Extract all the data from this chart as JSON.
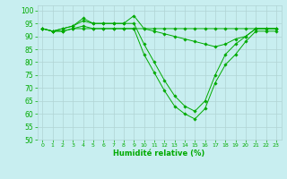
{
  "background_color": "#c8eef0",
  "grid_color": "#b0d4d4",
  "line_color": "#00aa00",
  "marker_color": "#00aa00",
  "xlabel": "Humidité relative (%)",
  "xlabel_color": "#00aa00",
  "tick_color": "#00aa00",
  "ylim": [
    50,
    102
  ],
  "xlim": [
    -0.5,
    23.5
  ],
  "yticks": [
    50,
    55,
    60,
    65,
    70,
    75,
    80,
    85,
    90,
    95,
    100
  ],
  "xticks": [
    0,
    1,
    2,
    3,
    4,
    5,
    6,
    7,
    8,
    9,
    10,
    11,
    12,
    13,
    14,
    15,
    16,
    17,
    18,
    19,
    20,
    21,
    22,
    23
  ],
  "series": [
    [
      93,
      92,
      92,
      93,
      93,
      93,
      93,
      93,
      93,
      93,
      93,
      93,
      93,
      93,
      93,
      93,
      93,
      93,
      93,
      93,
      93,
      93,
      93,
      93
    ],
    [
      93,
      92,
      93,
      94,
      97,
      95,
      95,
      95,
      95,
      98,
      93,
      92,
      91,
      90,
      89,
      88,
      87,
      86,
      87,
      89,
      90,
      93,
      93,
      93
    ],
    [
      93,
      92,
      93,
      94,
      96,
      95,
      95,
      95,
      95,
      95,
      87,
      80,
      73,
      67,
      63,
      61,
      65,
      75,
      83,
      87,
      90,
      93,
      93,
      93
    ],
    [
      93,
      92,
      92,
      93,
      94,
      93,
      93,
      93,
      93,
      93,
      83,
      76,
      69,
      63,
      60,
      58,
      62,
      72,
      79,
      83,
      88,
      92,
      92,
      92
    ]
  ]
}
